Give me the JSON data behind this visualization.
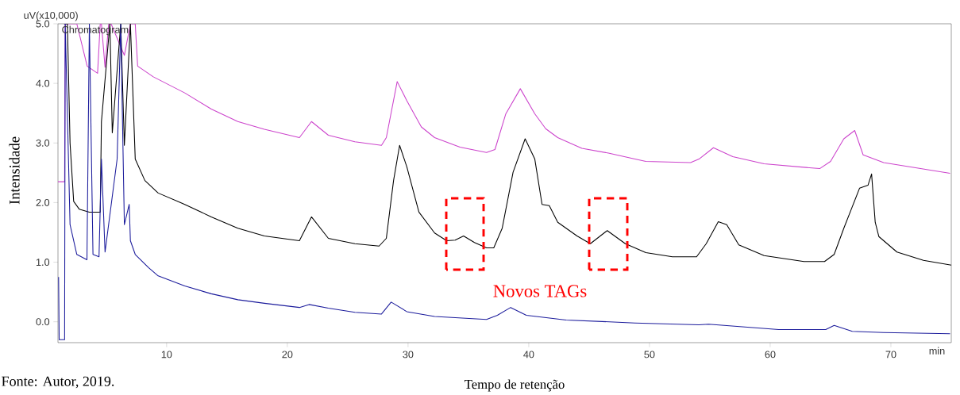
{
  "chart_data": {
    "type": "line",
    "xlabel": "Tempo de retenção",
    "ylabel": "Intensidade",
    "xlim": [
      1,
      75
    ],
    "ylim": [
      -0.35,
      5.0
    ],
    "xticks": [
      10,
      20,
      30,
      40,
      50,
      60,
      70
    ],
    "yticks": [
      {
        "value": 0,
        "label": "0.0"
      },
      {
        "value": 1,
        "label": "1.0"
      },
      {
        "value": 2,
        "label": "2.0"
      },
      {
        "value": 3,
        "label": "3.0"
      },
      {
        "value": 4,
        "label": "4.0"
      },
      {
        "value": 5,
        "label": "5.0"
      }
    ],
    "grid": false,
    "marker": "none",
    "line_style": "solid",
    "series": [
      {
        "color": "#cc44cc",
        "x": [
          1.0,
          1.55,
          1.6,
          2.56,
          3.42,
          4.28,
          4.5,
          4.6,
          4.9,
          5.2,
          5.4,
          6.5,
          7.0,
          7.4,
          7.6,
          8.9,
          11.5,
          13.7,
          15.9,
          18.1,
          21.0,
          22.0,
          23.4,
          25.6,
          27.8,
          28.2,
          29.1,
          29.9,
          31.1,
          32.2,
          34.3,
          36.5,
          37.2,
          38.1,
          39.3,
          40.5,
          41.4,
          42.4,
          44.4,
          46.6,
          48.8,
          49.7,
          53.4,
          54.1,
          55.3,
          56.9,
          59.5,
          64.1,
          65.0,
          66.1,
          67.0,
          67.7,
          69.4,
          74.9
        ],
        "values": [
          2.35,
          2.35,
          5.0,
          5.0,
          4.29,
          4.17,
          5.0,
          5.0,
          4.27,
          5.0,
          5.0,
          4.47,
          5.0,
          5.0,
          4.29,
          4.11,
          3.84,
          3.57,
          3.36,
          3.23,
          3.09,
          3.36,
          3.13,
          3.02,
          2.96,
          3.09,
          4.03,
          3.71,
          3.27,
          3.09,
          2.93,
          2.84,
          2.89,
          3.49,
          3.91,
          3.49,
          3.24,
          3.09,
          2.91,
          2.83,
          2.73,
          2.69,
          2.67,
          2.73,
          2.92,
          2.77,
          2.65,
          2.57,
          2.69,
          3.07,
          3.21,
          2.8,
          2.67,
          2.49
        ]
      },
      {
        "color": "#000000",
        "x": [
          1.5,
          1.78,
          2.0,
          2.3,
          2.76,
          3.6,
          4.5,
          4.6,
          5.3,
          5.5,
          6.2,
          6.5,
          7.0,
          7.4,
          8.2,
          9.3,
          11.5,
          13.7,
          15.9,
          18.1,
          21.0,
          22.0,
          23.4,
          25.6,
          27.6,
          28.2,
          28.8,
          29.3,
          29.9,
          30.9,
          32.2,
          33.2,
          33.9,
          34.6,
          35.5,
          36.5,
          37.1,
          37.8,
          38.7,
          39.7,
          40.5,
          41.1,
          41.7,
          42.4,
          44.0,
          45.1,
          46.5,
          48.0,
          49.7,
          51.9,
          53.9,
          54.7,
          55.7,
          56.4,
          57.4,
          59.5,
          62.8,
          64.5,
          65.3,
          66.1,
          66.8,
          67.4,
          68.1,
          68.4,
          68.7,
          69.0,
          70.5,
          72.7,
          75.0
        ],
        "values": [
          5.0,
          5.0,
          3.0,
          2.02,
          1.89,
          1.84,
          1.84,
          3.36,
          5.0,
          3.17,
          5.0,
          2.96,
          5.0,
          2.73,
          2.37,
          2.16,
          1.97,
          1.76,
          1.57,
          1.44,
          1.36,
          1.76,
          1.4,
          1.31,
          1.27,
          1.4,
          2.37,
          2.96,
          2.6,
          1.84,
          1.49,
          1.36,
          1.37,
          1.44,
          1.33,
          1.24,
          1.24,
          1.57,
          2.51,
          3.07,
          2.73,
          1.97,
          1.95,
          1.67,
          1.44,
          1.31,
          1.53,
          1.31,
          1.16,
          1.09,
          1.09,
          1.31,
          1.68,
          1.63,
          1.29,
          1.11,
          1.01,
          1.01,
          1.13,
          1.57,
          1.93,
          2.24,
          2.29,
          2.48,
          1.67,
          1.43,
          1.17,
          1.03,
          0.95
        ]
      },
      {
        "color": "#1c1c9c",
        "x": [
          1.05,
          1.1,
          1.55,
          1.6,
          2.0,
          2.56,
          3.4,
          3.6,
          3.9,
          4.4,
          4.6,
          4.9,
          5.9,
          6.2,
          6.5,
          6.9,
          7.0,
          7.4,
          8.5,
          9.3,
          11.5,
          13.7,
          15.9,
          18.1,
          21.0,
          21.8,
          23.4,
          25.6,
          27.8,
          28.6,
          29.9,
          32.2,
          36.5,
          37.4,
          38.5,
          39.8,
          43.1,
          48.8,
          54.1,
          54.9,
          60.7,
          64.6,
          65.3,
          66.8,
          69.4,
          74.9
        ],
        "values": [
          0.75,
          -0.3,
          -0.3,
          5.0,
          1.63,
          1.13,
          1.04,
          5.0,
          1.13,
          1.09,
          2.73,
          1.17,
          2.73,
          5.0,
          1.63,
          1.97,
          1.36,
          1.13,
          0.91,
          0.77,
          0.6,
          0.47,
          0.37,
          0.31,
          0.24,
          0.29,
          0.23,
          0.16,
          0.13,
          0.33,
          0.17,
          0.09,
          0.04,
          0.11,
          0.24,
          0.11,
          0.03,
          -0.02,
          -0.05,
          -0.04,
          -0.13,
          -0.13,
          -0.06,
          -0.16,
          -0.18,
          -0.2
        ]
      }
    ],
    "annotations": [
      "uV(x10,000)",
      "Chromatogram",
      "Novos TAGs",
      "Fonte: Autor, 2019.",
      "min"
    ]
  }
}
